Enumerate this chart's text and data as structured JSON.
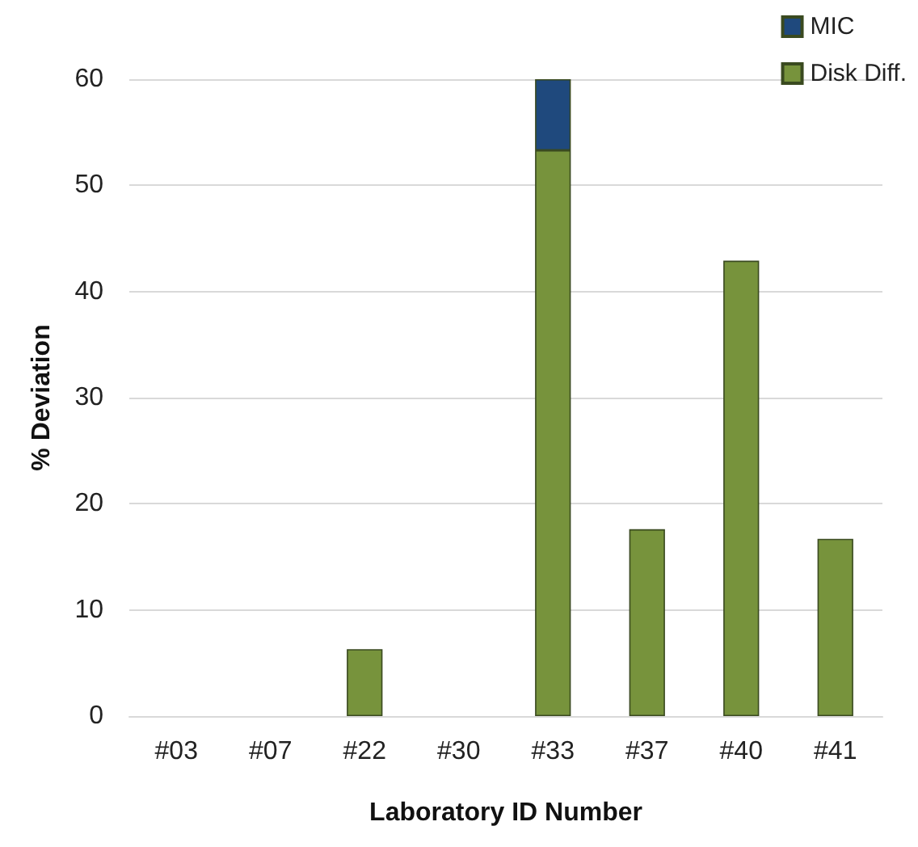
{
  "chart_data": {
    "type": "bar",
    "stacked": true,
    "xlabel": "Laboratory ID Number",
    "ylabel": "% Deviation",
    "categories": [
      "#03",
      "#07",
      "#22",
      "#30",
      "#33",
      "#37",
      "#40",
      "#41"
    ],
    "series": [
      {
        "name": "Disk Diff.",
        "color": "#77933c",
        "values": [
          0,
          0,
          6.3,
          0,
          53.3,
          17.6,
          42.9,
          16.7
        ]
      },
      {
        "name": "MIC",
        "color": "#1f497d",
        "values": [
          0,
          0,
          0,
          0,
          6.7,
          0,
          0,
          0
        ]
      }
    ],
    "ylim": [
      0,
      60
    ],
    "yticks": [
      0,
      10,
      20,
      30,
      40,
      50,
      60
    ],
    "grid": "y",
    "legend": "top right"
  }
}
